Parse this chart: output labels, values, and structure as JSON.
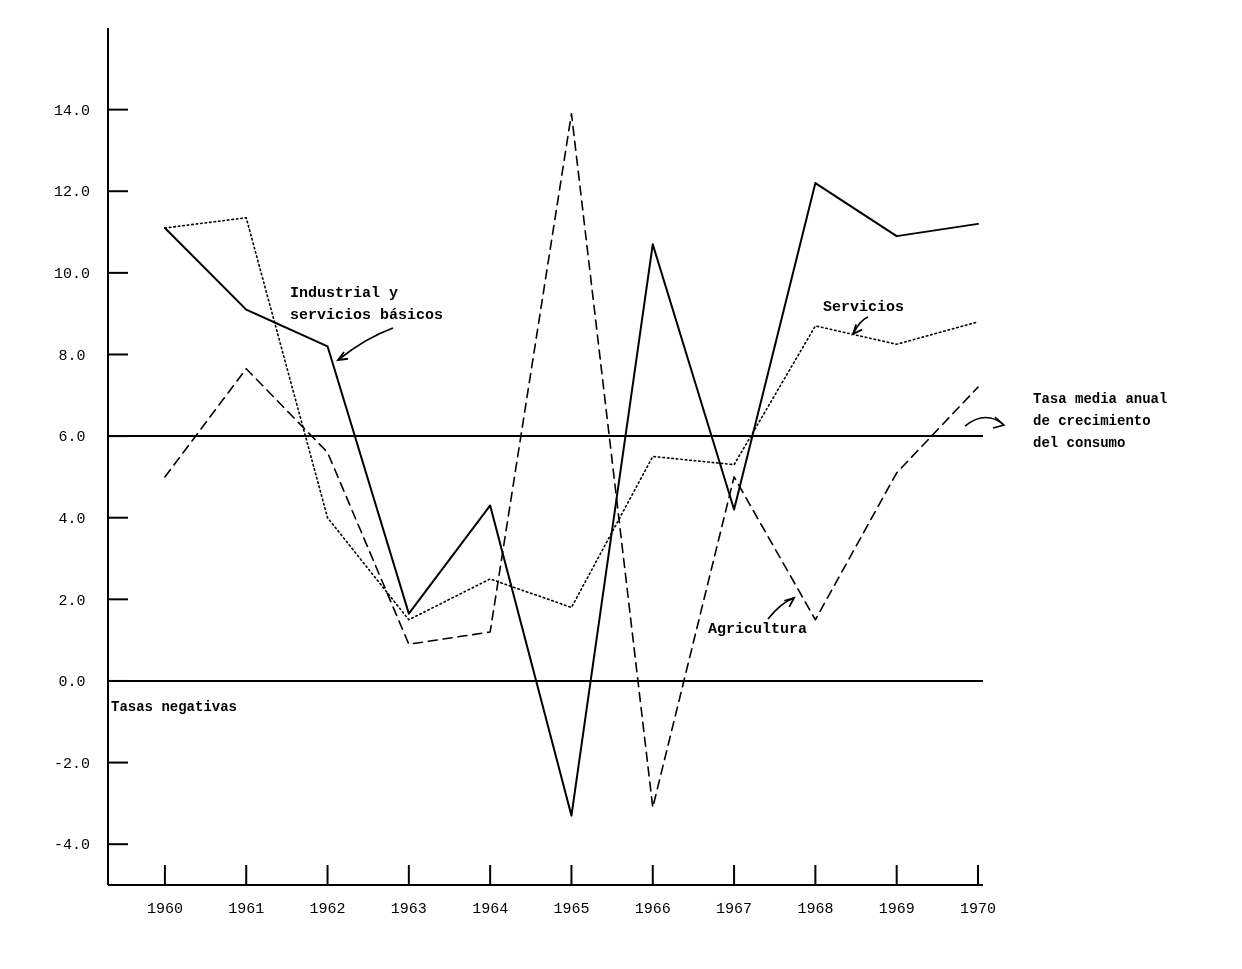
{
  "chart_data": {
    "type": "line",
    "categories": [
      "1960",
      "1961",
      "1962",
      "1963",
      "1964",
      "1965",
      "1966",
      "1967",
      "1968",
      "1969",
      "1970"
    ],
    "ylim": [
      -5,
      16
    ],
    "yticks": [
      {
        "value": -4,
        "label": "-4.0"
      },
      {
        "value": -2,
        "label": "-2.0"
      },
      {
        "value": 0,
        "label": "0.0"
      },
      {
        "value": 2,
        "label": "2.0"
      },
      {
        "value": 4,
        "label": "4.0"
      },
      {
        "value": 6,
        "label": "6.0"
      },
      {
        "value": 8,
        "label": "8.0"
      },
      {
        "value": 10,
        "label": "10.0"
      },
      {
        "value": 12,
        "label": "12.0"
      },
      {
        "value": 14,
        "label": "14.0"
      }
    ],
    "series": [
      {
        "name": "Industrial y servicios básicos",
        "color": "#000000",
        "line_style": "solid",
        "values": [
          11.1,
          9.1,
          8.2,
          1.65,
          4.3,
          -3.3,
          10.7,
          4.2,
          12.2,
          10.9,
          11.2
        ]
      },
      {
        "name": "Servicios",
        "color": "#000000",
        "line_style": "dotted",
        "values": [
          11.1,
          11.35,
          4.0,
          1.5,
          2.5,
          1.8,
          5.5,
          5.3,
          8.7,
          8.25,
          8.8
        ]
      },
      {
        "name": "Agricultura",
        "color": "#000000",
        "line_style": "dashed",
        "values": [
          5.0,
          7.65,
          5.6,
          0.9,
          1.2,
          13.9,
          -3.1,
          5.0,
          1.5,
          5.1,
          7.2
        ]
      }
    ],
    "ref_lines": [
      {
        "axis": "y",
        "value": 6,
        "label": "Tasa media anual de crecimiento del consumo",
        "color": "#000000"
      },
      {
        "axis": "y",
        "value": 0,
        "label": "Tasas negativas",
        "color": "#000000"
      }
    ],
    "grid": false
  }
}
